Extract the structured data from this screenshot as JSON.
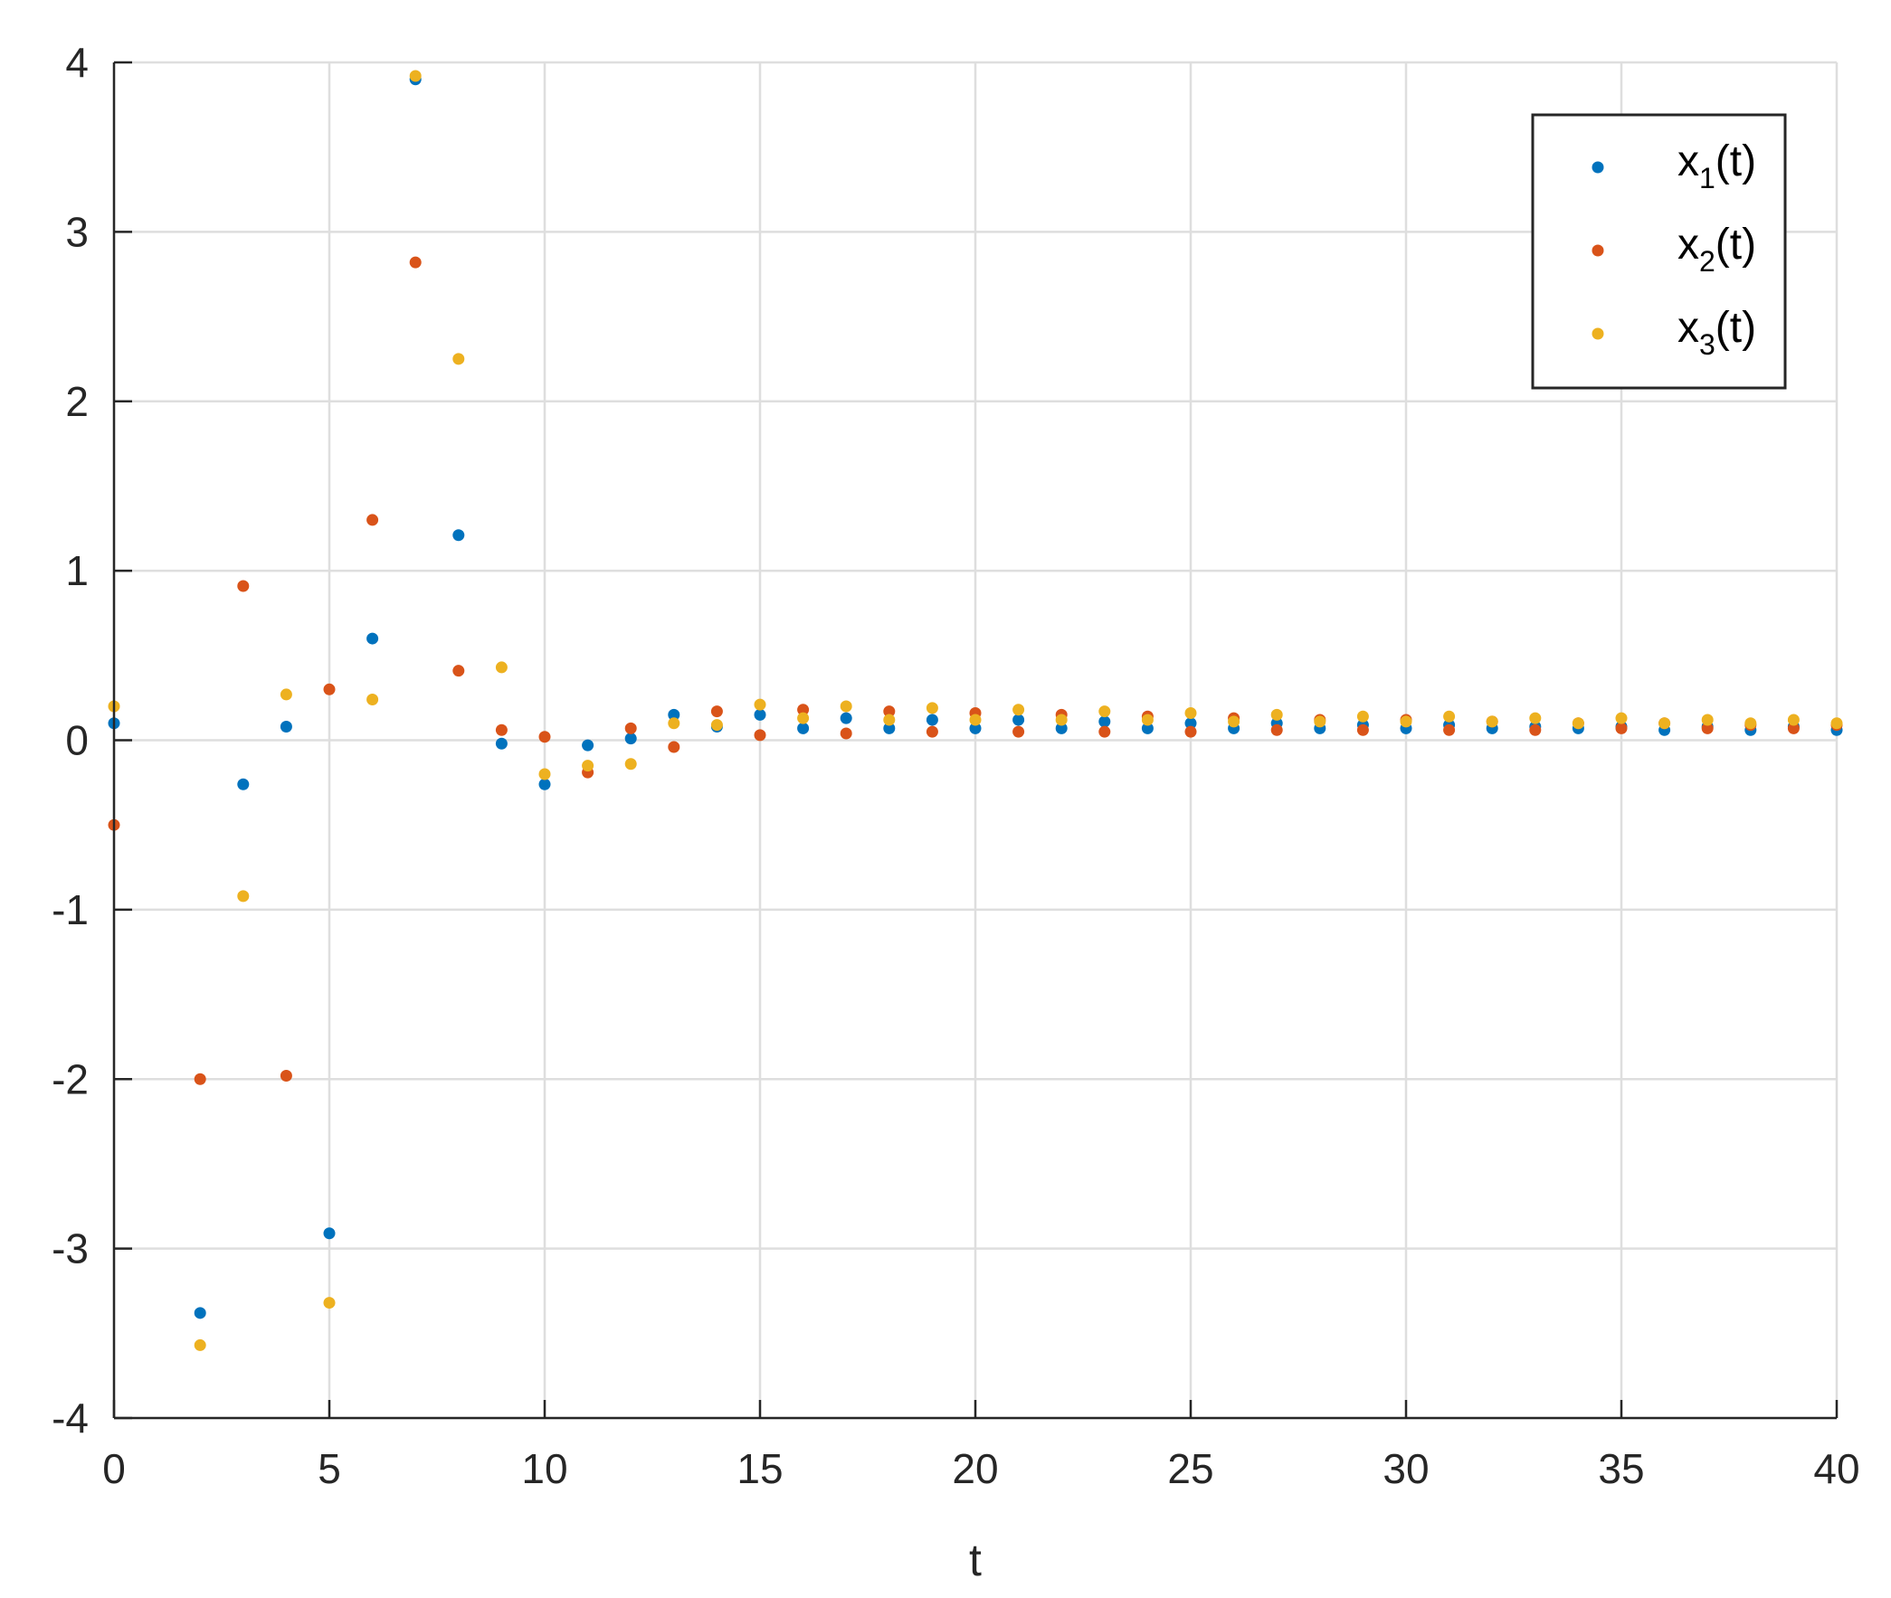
{
  "chart_data": {
    "type": "scatter",
    "xlabel": "t",
    "ylabel": "",
    "xlim": [
      0,
      40
    ],
    "ylim": [
      -4,
      4
    ],
    "xticks": [
      0,
      5,
      10,
      15,
      20,
      25,
      30,
      35,
      40
    ],
    "yticks": [
      -4,
      -3,
      -2,
      -1,
      0,
      1,
      2,
      3,
      4
    ],
    "grid": true,
    "legend_position": "top-right",
    "series": [
      {
        "name": "x_1(t)",
        "legend_base": "x",
        "legend_sub": "1",
        "legend_suffix": "(t)",
        "color": "#0072BD",
        "x": [
          0,
          2,
          3,
          4,
          5,
          6,
          7,
          8,
          9,
          10,
          11,
          12,
          13,
          14,
          15,
          16,
          17,
          18,
          19,
          20,
          21,
          22,
          23,
          24,
          25,
          26,
          27,
          28,
          29,
          30,
          31,
          32,
          33,
          34,
          35,
          36,
          37,
          38,
          39,
          40
        ],
        "y": [
          0.1,
          -3.38,
          -0.26,
          0.08,
          -2.91,
          0.6,
          3.9,
          1.21,
          -0.02,
          -0.26,
          -0.03,
          0.01,
          0.15,
          0.08,
          0.15,
          0.07,
          0.13,
          0.07,
          0.12,
          0.07,
          0.12,
          0.07,
          0.11,
          0.07,
          0.1,
          0.07,
          0.1,
          0.07,
          0.09,
          0.07,
          0.09,
          0.07,
          0.08,
          0.07,
          0.08,
          0.06,
          0.08,
          0.06,
          0.08,
          0.06
        ]
      },
      {
        "name": "x_2(t)",
        "legend_base": "x",
        "legend_sub": "2",
        "legend_suffix": "(t)",
        "color": "#D95319",
        "x": [
          0,
          2,
          3,
          4,
          5,
          6,
          7,
          8,
          9,
          10,
          11,
          12,
          13,
          14,
          15,
          16,
          17,
          18,
          19,
          20,
          21,
          22,
          23,
          24,
          25,
          26,
          27,
          28,
          29,
          30,
          31,
          32,
          33,
          34,
          35,
          36,
          37,
          38,
          39,
          40
        ],
        "y": [
          -0.5,
          -2.0,
          0.91,
          -1.98,
          0.3,
          1.3,
          2.82,
          0.41,
          0.06,
          0.02,
          -0.19,
          0.07,
          -0.04,
          0.17,
          0.03,
          0.18,
          0.04,
          0.17,
          0.05,
          0.16,
          0.05,
          0.15,
          0.05,
          0.14,
          0.05,
          0.13,
          0.06,
          0.12,
          0.06,
          0.12,
          0.06,
          0.11,
          0.06,
          0.1,
          0.07,
          0.1,
          0.07,
          0.09,
          0.07,
          0.09
        ]
      },
      {
        "name": "x_3(t)",
        "legend_base": "x",
        "legend_sub": "3",
        "legend_suffix": "(t)",
        "color": "#EDB120",
        "x": [
          0,
          2,
          3,
          4,
          5,
          6,
          7,
          8,
          9,
          10,
          11,
          12,
          13,
          14,
          15,
          16,
          17,
          18,
          19,
          20,
          21,
          22,
          23,
          24,
          25,
          26,
          27,
          28,
          29,
          30,
          31,
          32,
          33,
          34,
          35,
          36,
          37,
          38,
          39,
          40
        ],
        "y": [
          0.2,
          -3.57,
          -0.92,
          0.27,
          -3.32,
          0.24,
          3.92,
          2.25,
          0.43,
          -0.2,
          -0.15,
          -0.14,
          0.1,
          0.09,
          0.21,
          0.13,
          0.2,
          0.12,
          0.19,
          0.12,
          0.18,
          0.12,
          0.17,
          0.12,
          0.16,
          0.11,
          0.15,
          0.11,
          0.14,
          0.11,
          0.14,
          0.11,
          0.13,
          0.1,
          0.13,
          0.1,
          0.12,
          0.1,
          0.12,
          0.1
        ]
      }
    ]
  }
}
